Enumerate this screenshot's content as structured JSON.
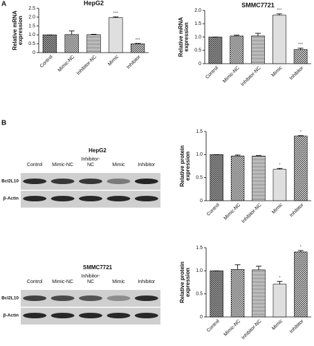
{
  "panels": [
    "A",
    "B"
  ],
  "chart_data": [
    {
      "type": "bar",
      "title": "HepG2",
      "ylabel": [
        "Relative mRNA",
        "expression"
      ],
      "categories": [
        "Control",
        "Mimic-NC",
        "Inhibitor-NC",
        "Mimic",
        "Inhibitor"
      ],
      "values": [
        1.0,
        1.02,
        1.01,
        1.97,
        0.5
      ],
      "errors": [
        0,
        0.2,
        0.02,
        0.05,
        0.02
      ],
      "annotations": [
        {
          "text": "***",
          "x": "Mimic"
        },
        {
          "text": "***",
          "x": "Inhibitor"
        }
      ],
      "ylim": [
        0,
        2.5
      ],
      "yticks": [
        0,
        0.5,
        {
          "value": 1,
          "label": "1.0"
        },
        1.5,
        {
          "value": 2,
          "label": "2.0"
        },
        2.5
      ]
    },
    {
      "type": "bar",
      "title": "SMMC7721",
      "ylabel": [
        "Relative mRNA",
        "expression"
      ],
      "categories": [
        "Control",
        "Mimic-NC",
        "Inhibitor-NC",
        "Mimic",
        "Inhibitor"
      ],
      "values": [
        1.0,
        1.04,
        1.04,
        1.82,
        0.53
      ],
      "errors": [
        0,
        0.03,
        0.1,
        0.05,
        0.05
      ],
      "annotations": [
        {
          "text": "***",
          "x": "Mimic"
        },
        {
          "text": "***",
          "x": "Inhibitor"
        }
      ],
      "ylim": [
        0,
        2
      ],
      "yticks": [
        0,
        0.5,
        {
          "value": 1,
          "label": "1.0"
        },
        1.5,
        {
          "value": 2,
          "label": "2.0"
        }
      ]
    },
    {
      "type": "bar",
      "ylabel": [
        "Relative protein",
        "expression"
      ],
      "categories": [
        "Control",
        "Mimic-NC",
        "Inhibitor-NC",
        "Mimic",
        "Inhibitor"
      ],
      "values": [
        1.0,
        0.97,
        0.97,
        0.68,
        1.4
      ],
      "errors": [
        0,
        0.02,
        0.01,
        0.02,
        0.01
      ],
      "annotations": [
        {
          "text": "*",
          "x": "Mimic"
        },
        {
          "text": "*",
          "x": "Inhibitor"
        }
      ],
      "ylim": [
        0,
        1.5
      ],
      "yticks": [
        0,
        0.5,
        {
          "value": 1,
          "label": "1.0"
        },
        1.5
      ]
    },
    {
      "type": "bar",
      "ylabel": [
        "Relative protein",
        "expression"
      ],
      "categories": [
        "Control",
        "Mimic-NC",
        "Inhibitor-NC",
        "Mimic",
        "Inhibitor"
      ],
      "values": [
        1.0,
        1.03,
        1.02,
        0.71,
        1.41
      ],
      "errors": [
        0,
        0.1,
        0.08,
        0.06,
        0.03
      ],
      "annotations": [
        {
          "text": "*",
          "x": "Mimic"
        },
        {
          "text": "*",
          "x": "Inhibitor"
        }
      ],
      "ylim": [
        0,
        1.5
      ],
      "yticks": [
        0,
        0.5,
        {
          "value": 1,
          "label": "1.0"
        },
        1.5
      ]
    }
  ],
  "blots": [
    {
      "title": "HepG2",
      "lanes": [
        "Control",
        "Mimic-NC",
        [
          "Inhibitor-",
          "NC"
        ],
        "Mimic",
        "Inhibitor"
      ],
      "rows": [
        "Bcl2L10",
        "β-Actin"
      ]
    },
    {
      "title": "SMMC7721",
      "lanes": [
        "Control",
        "Mimic-NC",
        [
          "Inhibitor-",
          "NC"
        ],
        "Mimic",
        "Inhibitor"
      ],
      "rows": [
        "Bcl2L10",
        "β-Actin"
      ]
    }
  ]
}
